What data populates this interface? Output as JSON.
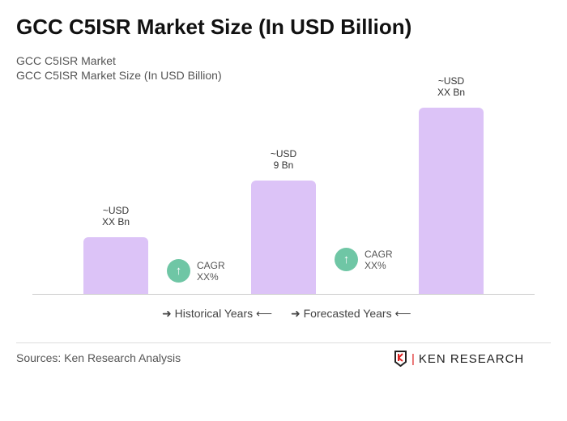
{
  "title": "GCC C5ISR Market Size (In USD Billion)",
  "subtitle1": "GCC C5ISR Market",
  "subtitle2": "GCC C5ISR Market Size (In USD Billion)",
  "chart_data": {
    "type": "bar",
    "values": [
      4.5,
      9,
      14.8
    ],
    "labels": [
      [
        "~USD",
        "XX Bn"
      ],
      [
        "~USD",
        "9 Bn"
      ],
      [
        "~USD",
        "XX Bn"
      ]
    ],
    "color": "#dcc3f7",
    "cagr": [
      {
        "label": "CAGR",
        "value": "XX%"
      },
      {
        "label": "CAGR",
        "value": "XX%"
      }
    ],
    "cagr_color": "#6fc6a5",
    "legend": [
      "Historical Years",
      "Forecasted Years"
    ]
  },
  "sources": "Sources: Ken Research Analysis",
  "logo": "KEN RESEARCH"
}
